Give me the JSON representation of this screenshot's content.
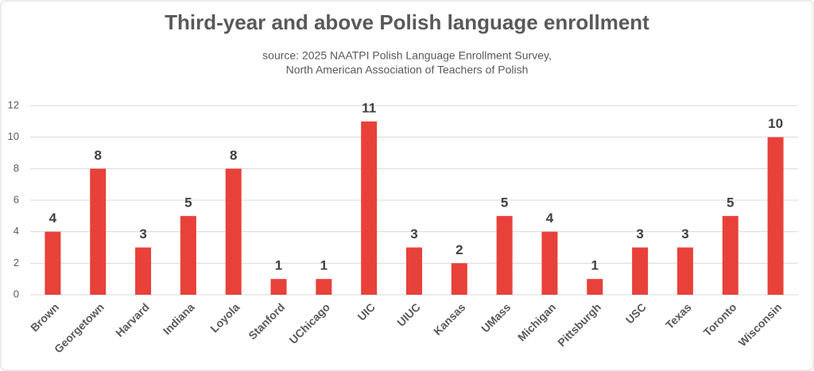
{
  "chart_data": {
    "type": "bar",
    "title": "Third-year and above Polish language enrollment",
    "subtitle": [
      "source: 2025 NAATPI Polish Language Enrollment Survey,",
      "North American Association of Teachers of Polish"
    ],
    "categories": [
      "Brown",
      "Georgetown",
      "Harvard",
      "Indiana",
      "Loyola",
      "Stanford",
      "UChicago",
      "UIC",
      "UIUC",
      "Kansas",
      "UMass",
      "Michigan",
      "Pittsburgh",
      "USC",
      "Texas",
      "Toronto",
      "Wisconsin"
    ],
    "values": [
      4,
      8,
      3,
      5,
      8,
      1,
      1,
      11,
      3,
      2,
      5,
      4,
      1,
      3,
      3,
      5,
      10
    ],
    "color": "#e8413a",
    "ylim": [
      0,
      12
    ],
    "yticks": [
      0,
      2,
      4,
      6,
      8,
      10,
      12
    ],
    "grid": true
  }
}
